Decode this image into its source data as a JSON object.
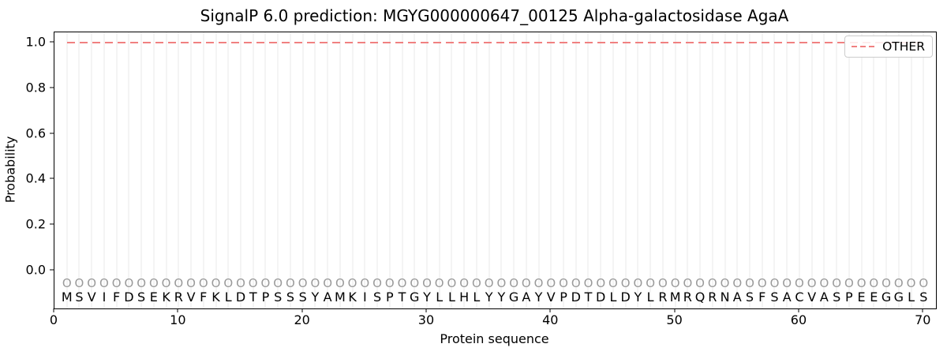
{
  "chart_data": {
    "type": "line",
    "title": "SignalP 6.0 prediction: MGYG000000647_00125 Alpha-galactosidase AgaA",
    "xlabel": "Protein sequence",
    "ylabel": "Probability",
    "xlim": [
      0,
      71
    ],
    "ylim": [
      -0.166,
      1.045
    ],
    "xticks": [
      0,
      10,
      20,
      30,
      40,
      50,
      60,
      70
    ],
    "yticks": [
      0.0,
      0.2,
      0.4,
      0.6,
      0.8,
      1.0
    ],
    "grid": "vertical gridline at every residue position 1-70",
    "legend": {
      "position": "upper right",
      "entries": [
        {
          "label": "OTHER",
          "color": "#f08080",
          "style": "dashed"
        }
      ]
    },
    "series": [
      {
        "name": "OTHER",
        "color": "#f08080",
        "style": "dashed",
        "x_range": [
          1,
          70
        ],
        "y_constant": 1.0
      }
    ],
    "sequence": "MSVIFDSEKRVFKLDTPSSSYAMKISPTGYLLHLYYGAYVPDTDLDYLRMRQRNASFSACVASPEEGGLS",
    "residue_marker": "O",
    "residue_marker_y": -0.055,
    "sequence_label_y": -0.115,
    "colors": {
      "other_line": "#f08080",
      "gridline": "#e9e9e9",
      "residue_marker": "#9a9a9a",
      "sequence_letter": "#000000",
      "axes": "#000000"
    }
  }
}
